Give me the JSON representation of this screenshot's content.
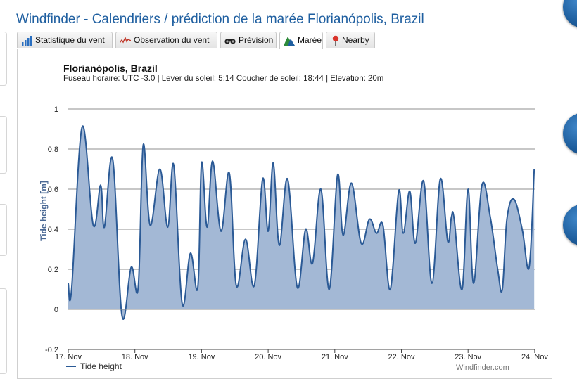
{
  "page": {
    "title": "Windfinder - Calendriers / prédiction de la marée Florianópolis, Brazil",
    "credit": "Windfinder.com"
  },
  "tabs": [
    {
      "label": "Statistique du vent",
      "icon": "bar-chart-icon",
      "active": false
    },
    {
      "label": "Observation du vent",
      "icon": "line-graph-icon",
      "active": false
    },
    {
      "label": "Prévision",
      "icon": "binoculars-icon",
      "active": false
    },
    {
      "label": "Marée",
      "icon": "tide-mountain-icon",
      "active": true
    },
    {
      "label": "Nearby",
      "icon": "map-pin-icon",
      "active": false
    }
  ],
  "colors": {
    "title": "#1f5fa0",
    "line": "#2b5a96",
    "fill": "#a3b8d5",
    "grid": "#8f8f8f",
    "axis_label": "#4a6894"
  },
  "chart_data": {
    "type": "area",
    "title": "Florianópolis, Brazil",
    "subtitle": "Fuseau horaire: UTC -3.0 | Lever du soleil: 5:14 Coucher de soleil: 18:44 | Elevation: 20m",
    "xlabel": "",
    "ylabel": "Tide height [m]",
    "ylim": [
      -0.2,
      1
    ],
    "yticks": [
      "-0.2",
      "0",
      "0.2",
      "0.4",
      "0.6",
      "0.8",
      "1"
    ],
    "xlim": [
      "2012-11-17",
      "2012-11-24"
    ],
    "xticks": [
      "17. Nov",
      "18. Nov",
      "19. Nov",
      "20. Nov",
      "21. Nov",
      "22. Nov",
      "23. Nov",
      "24. Nov"
    ],
    "grid": true,
    "legend_position": "bottom-left",
    "series": [
      {
        "name": "Tide height",
        "x": [
          "17 Nov 00:00",
          "17 Nov 01:12",
          "17 Nov 05:00",
          "17 Nov 09:00",
          "17 Nov 11:40",
          "17 Nov 13:00",
          "17 Nov 16:00",
          "17 Nov 19:20",
          "17 Nov 22:40",
          "18 Nov 01:12",
          "18 Nov 03:00",
          "18 Nov 05:30",
          "18 Nov 09:00",
          "18 Nov 11:50",
          "18 Nov 14:00",
          "18 Nov 17:00",
          "18 Nov 20:00",
          "18 Nov 22:40",
          "19 Nov 00:00",
          "19 Nov 02:00",
          "19 Nov 04:00",
          "19 Nov 07:00",
          "19 Nov 10:00",
          "19 Nov 12:30",
          "19 Nov 15:50",
          "19 Nov 19:00",
          "19 Nov 22:00",
          "20 Nov 00:00",
          "20 Nov 01:50",
          "20 Nov 04:00",
          "20 Nov 07:00",
          "20 Nov 10:30",
          "20 Nov 13:30",
          "20 Nov 16:00",
          "20 Nov 19:00",
          "20 Nov 22:00",
          "21 Nov 01:00",
          "21 Nov 03:00",
          "21 Nov 06:00",
          "21 Nov 09:30",
          "21 Nov 12:30",
          "21 Nov 15:00",
          "21 Nov 17:20",
          "21 Nov 20:00",
          "21 Nov 23:00",
          "22 Nov 00:40",
          "22 Nov 03:00",
          "22 Nov 05:00",
          "22 Nov 08:00",
          "22 Nov 11:00",
          "22 Nov 14:00",
          "22 Nov 16:40",
          "22 Nov 18:00",
          "22 Nov 19:00",
          "22 Nov 21:50",
          "23 Nov 00:00",
          "23 Nov 02:00",
          "23 Nov 05:00",
          "23 Nov 08:00",
          "23 Nov 10:40",
          "23 Nov 12:20",
          "23 Nov 14:00",
          "23 Nov 16:30",
          "23 Nov 19:30",
          "23 Nov 22:00",
          "23 Nov 23:50"
        ],
        "y": [
          0.13,
          0.1,
          0.91,
          0.42,
          0.62,
          0.41,
          0.75,
          -0.03,
          0.21,
          0.11,
          0.82,
          0.42,
          0.7,
          0.41,
          0.72,
          0.03,
          0.28,
          0.11,
          0.73,
          0.41,
          0.74,
          0.39,
          0.68,
          0.12,
          0.35,
          0.12,
          0.65,
          0.39,
          0.73,
          0.32,
          0.65,
          0.11,
          0.4,
          0.23,
          0.6,
          0.1,
          0.67,
          0.37,
          0.63,
          0.33,
          0.45,
          0.38,
          0.42,
          0.1,
          0.59,
          0.38,
          0.59,
          0.33,
          0.64,
          0.13,
          0.65,
          0.34,
          0.46,
          0.45,
          0.1,
          0.6,
          0.13,
          0.62,
          0.46,
          0.2,
          0.1,
          0.45,
          0.55,
          0.4,
          0.21,
          0.7
        ]
      }
    ]
  }
}
